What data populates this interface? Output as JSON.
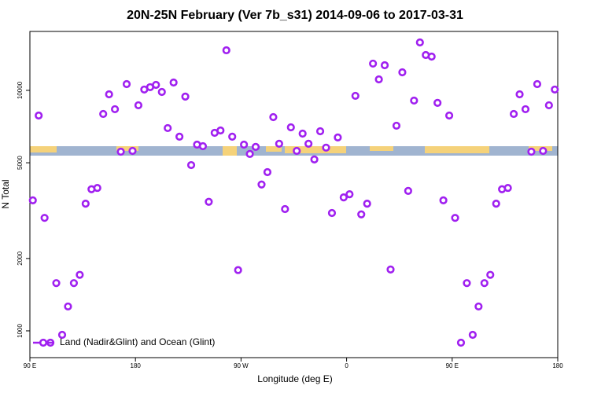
{
  "chart_data": {
    "type": "scatter",
    "title": "20N-25N February (Ver 7b_s31)   2014-09-06 to 2017-03-31",
    "x_label": "Longitude (deg E)",
    "y_label": "N Total",
    "xlim": [
      90,
      540
    ],
    "xticks": [
      {
        "value": 90,
        "label": "90 E"
      },
      180,
      {
        "value": 270,
        "label": "90 W"
      },
      {
        "value": 360,
        "label": "0"
      },
      {
        "value": 450,
        "label": "90 E"
      },
      {
        "value": 540,
        "label": "180"
      }
    ],
    "ylim": [
      774,
      17580
    ],
    "yticks": [
      1000,
      2000,
      5000,
      10000
    ],
    "log_y": true,
    "legend": "lower left",
    "series": [
      {
        "name": "Land (Nadir&Glint) and Ocean (Glint)",
        "color": "#a020f0",
        "x": [
          92.5,
          97.5,
          102.5,
          107.5,
          112.5,
          117.5,
          122.5,
          127.5,
          132.5,
          137.5,
          142.5,
          147.5,
          152.5,
          157.5,
          162.5,
          167.5,
          172.5,
          177.5,
          182.5,
          187.5,
          192.5,
          197.5,
          202.5,
          207.5,
          212.5,
          217.5,
          222.5,
          227.5,
          232.5,
          237.5,
          242.5,
          247.5,
          252.5,
          257.5,
          262.5,
          267.5,
          272.5,
          277.5,
          282.5,
          287.5,
          292.5,
          297.5,
          302.5,
          307.5,
          312.5,
          317.5,
          322.5,
          327.5,
          332.5,
          337.5,
          342.5,
          347.5,
          352.5,
          357.5,
          362.5,
          367.5,
          372.5,
          377.5,
          382.5,
          387.5,
          392.5,
          397.5,
          402.5,
          407.5,
          412.5,
          417.5,
          422.5,
          427.5,
          432.5,
          437.5,
          442.5,
          447.5,
          452.5,
          457.5,
          462.5,
          467.5,
          472.5,
          477.5,
          482.5,
          487.5,
          492.5,
          497.5,
          502.5,
          507.5,
          512.5,
          517.5,
          522.5,
          527.5,
          532.5,
          537.5
        ],
        "values": [
          3490,
          7860,
          2950,
          893,
          1580,
          963,
          1263,
          1580,
          1710,
          3380,
          3880,
          3930,
          7980,
          9630,
          8350,
          5560,
          10620,
          5600,
          8670,
          10080,
          10310,
          10540,
          9850,
          6970,
          10780,
          6420,
          9420,
          4890,
          5950,
          5860,
          3440,
          6660,
          6810,
          14680,
          6420,
          1790,
          5950,
          5440,
          5820,
          4060,
          4570,
          7740,
          6000,
          3210,
          7020,
          5600,
          6610,
          6000,
          5160,
          6760,
          5780,
          3090,
          6370,
          3590,
          3700,
          9490,
          3050,
          3380,
          12920,
          11110,
          12720,
          1800,
          7130,
          11890,
          3820,
          9070,
          15820,
          14030,
          13820,
          8870,
          3490,
          7860,
          2950,
          893,
          1580,
          963,
          1263,
          1580,
          1710,
          3380,
          3880,
          3930,
          7980,
          9630,
          8350,
          5560,
          10620,
          5600,
          8670,
          10080
        ]
      }
    ]
  }
}
